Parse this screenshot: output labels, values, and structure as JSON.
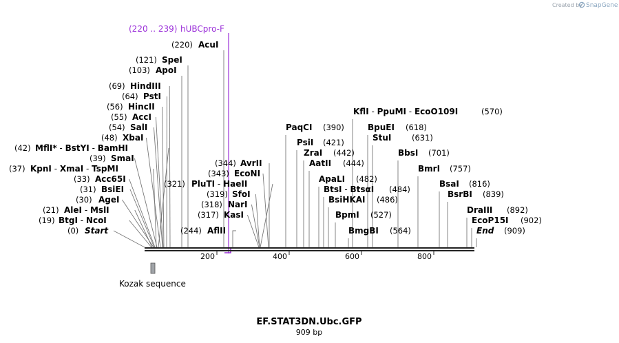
{
  "colors": {
    "primer": "#9b30d9",
    "feature": "#a0a4a8",
    "backbone": "#222222",
    "leader": "#777777"
  },
  "branding": {
    "prefix": "Created by",
    "name": "SnapGene"
  },
  "title": "EF.STAT3DN.Ubc.GFP",
  "length_label": "909 bp",
  "ruler": {
    "ticks": [
      "200",
      "400",
      "600",
      "800"
    ]
  },
  "feature": {
    "name": "Kozak sequence"
  },
  "primer": {
    "range": "(220 .. 239)",
    "name": "hUBCpro-F"
  },
  "sites_left": [
    {
      "pos": "(220)",
      "parts": [
        "AcuI"
      ]
    },
    {
      "pos": "(121)",
      "parts": [
        "SpeI"
      ]
    },
    {
      "pos": "(103)",
      "parts": [
        "ApoI"
      ]
    },
    {
      "pos": "(69)",
      "parts": [
        "HindIII"
      ]
    },
    {
      "pos": "(64)",
      "parts": [
        "PstI"
      ]
    },
    {
      "pos": "(56)",
      "parts": [
        "HincII"
      ]
    },
    {
      "pos": "(55)",
      "parts": [
        "AccI"
      ]
    },
    {
      "pos": "(54)",
      "parts": [
        "SalI"
      ]
    },
    {
      "pos": "(48)",
      "parts": [
        "XbaI"
      ]
    },
    {
      "pos": "(42)",
      "parts": [
        "MflI",
        "BstYI",
        "BamHI"
      ],
      "star": "*"
    },
    {
      "pos": "(39)",
      "parts": [
        "SmaI"
      ]
    },
    {
      "pos": "(37)",
      "parts": [
        "KpnI",
        "XmaI",
        "TspMI"
      ]
    },
    {
      "pos": "(33)",
      "parts": [
        "Acc65I"
      ]
    },
    {
      "pos": "(31)",
      "parts": [
        "BsiEI"
      ]
    },
    {
      "pos": "(30)",
      "parts": [
        "AgeI"
      ]
    },
    {
      "pos": "(21)",
      "parts": [
        "AleI",
        "MslI"
      ]
    },
    {
      "pos": "(19)",
      "parts": [
        "BtgI",
        "NcoI"
      ]
    },
    {
      "pos": "(0)",
      "parts": [
        "Start"
      ],
      "italic": true
    }
  ],
  "sites_mid": [
    {
      "pos": "(344)",
      "parts": [
        "AvrII"
      ]
    },
    {
      "pos": "(343)",
      "parts": [
        "EcoNI"
      ]
    },
    {
      "pos": "(321)",
      "parts": [
        "PluTI",
        "HaeII"
      ]
    },
    {
      "pos": "(319)",
      "parts": [
        "SfoI"
      ]
    },
    {
      "pos": "(318)",
      "parts": [
        "NarI"
      ]
    },
    {
      "pos": "(317)",
      "parts": [
        "KasI"
      ]
    },
    {
      "pos": "(244)",
      "parts": [
        "AflII"
      ]
    }
  ],
  "sites_right": [
    {
      "pos": "(570)",
      "parts": [
        "KflI",
        "PpuMI",
        "EcoO109I"
      ]
    },
    {
      "pos": "(390)",
      "parts": [
        "PaqCI"
      ]
    },
    {
      "pos": "(618)",
      "parts": [
        "BpuEI"
      ]
    },
    {
      "pos": "(421)",
      "parts": [
        "PsiI"
      ]
    },
    {
      "pos": "(631)",
      "parts": [
        "StuI"
      ]
    },
    {
      "pos": "(442)",
      "parts": [
        "ZraI"
      ]
    },
    {
      "pos": "(701)",
      "parts": [
        "BbsI"
      ]
    },
    {
      "pos": "(444)",
      "parts": [
        "AatII"
      ]
    },
    {
      "pos": "(757)",
      "parts": [
        "BmrI"
      ]
    },
    {
      "pos": "(482)",
      "parts": [
        "ApaLI"
      ]
    },
    {
      "pos": "(816)",
      "parts": [
        "BsaI"
      ]
    },
    {
      "pos": "(484)",
      "parts": [
        "BtsI",
        "BtsαI"
      ]
    },
    {
      "pos": "(839)",
      "parts": [
        "BsrBI"
      ]
    },
    {
      "pos": "(486)",
      "parts": [
        "BsiHKAI"
      ]
    },
    {
      "pos": "(892)",
      "parts": [
        "DraIII"
      ]
    },
    {
      "pos": "(527)",
      "parts": [
        "BpmI"
      ]
    },
    {
      "pos": "(902)",
      "parts": [
        "EcoP15I"
      ]
    },
    {
      "pos": "(564)",
      "parts": [
        "BmgBI"
      ]
    },
    {
      "pos": "(909)",
      "parts": [
        "End"
      ],
      "italic": true
    }
  ]
}
